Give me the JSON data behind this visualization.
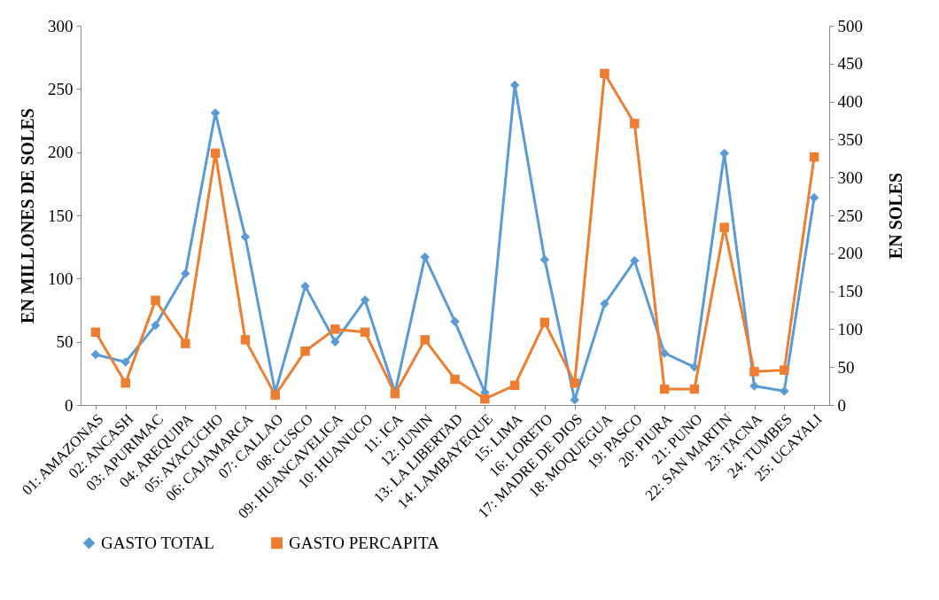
{
  "chart_data": {
    "type": "line",
    "ylabel": "EN MILLONES DE SOLES",
    "y2label": "EN SOLES",
    "categories": [
      "01: AMAZONAS",
      "02: ANCASH",
      "03: APURIMAC",
      "04: AREQUIPA",
      "05: AYACUCHO",
      "06: CAJAMARCA",
      "07: CALLAO",
      "08: CUSCO",
      "09: HUANCAVELICA",
      "10: HUANUCO",
      "11: ICA",
      "12: JUNIN",
      "13: LA LIBERTAD",
      "14: LAMBAYEQUE",
      "15: LIMA",
      "16: LORETO",
      "17: MADRE DE DIOS",
      "18: MOQUEGUA",
      "19: PASCO",
      "20: PIURA",
      "21: PUNO",
      "22: SAN MARTIN",
      "23: TACNA",
      "24: TUMBES",
      "25: UCAYALI"
    ],
    "series": [
      {
        "name": "GASTO TOTAL",
        "color": "#5b9bd5",
        "marker": "diamond",
        "values": [
          40,
          34,
          63,
          104,
          231,
          133,
          10,
          94,
          50,
          83,
          10,
          117,
          66,
          10,
          253,
          115,
          4,
          80,
          114,
          41,
          30,
          199,
          15,
          11,
          164
        ]
      },
      {
        "name": "GASTO PERCAPITA",
        "color": "#ed7d31",
        "marker": "square",
        "axis": "y2",
        "values": [
          96,
          29,
          138,
          81,
          332,
          86,
          13,
          71,
          100,
          96,
          15,
          86,
          34,
          8,
          26,
          109,
          29,
          437,
          371,
          21,
          21,
          234,
          44,
          46,
          327
        ]
      }
    ],
    "ylim": [
      0,
      300
    ],
    "yticks": [
      0,
      50,
      100,
      150,
      200,
      250,
      300
    ],
    "y2lim": [
      0,
      500
    ],
    "y2ticks": [
      0,
      50,
      100,
      150,
      200,
      250,
      300,
      350,
      400,
      450,
      500
    ],
    "grid": false,
    "legend": "bottom"
  }
}
